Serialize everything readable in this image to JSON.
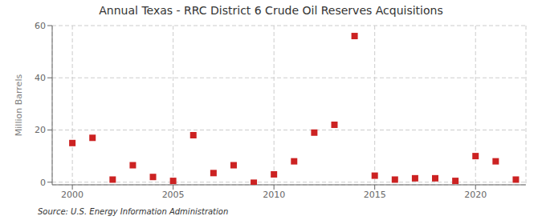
{
  "chart_data": {
    "type": "scatter",
    "title": "Annual Texas - RRC District 6 Crude Oil Reserves Acquisitions",
    "ylabel": "Million Barrels",
    "annotations": [
      "Source: U.S. Energy Information Administration"
    ],
    "x": [
      2000,
      2001,
      2002,
      2003,
      2004,
      2005,
      2006,
      2007,
      2008,
      2009,
      2010,
      2011,
      2012,
      2013,
      2014,
      2015,
      2016,
      2017,
      2018,
      2019,
      2020,
      2021,
      2022
    ],
    "values": [
      15.0,
      17.0,
      1.0,
      6.5,
      2.0,
      0.5,
      18.0,
      3.5,
      6.5,
      -0.2,
      3.0,
      8.0,
      19.0,
      22.0,
      56.0,
      2.5,
      1.0,
      1.5,
      1.5,
      0.5,
      10.0,
      8.0,
      1.0
    ],
    "color": "#cc2222",
    "marker": "square",
    "xlim": [
      1999.0,
      2022.5
    ],
    "ylim": [
      -1,
      60
    ],
    "xticks": [
      2000,
      2005,
      2010,
      2015,
      2020
    ],
    "yticks": [
      0,
      20,
      40,
      60
    ],
    "grid": true
  }
}
